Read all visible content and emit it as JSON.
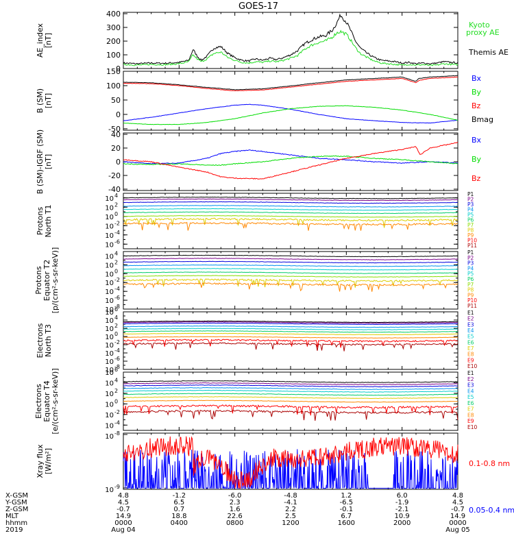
{
  "title": "GOES-17",
  "x_axis": {
    "row_labels": [
      "X-GSM",
      "Y-GSM",
      "Z-GSM",
      "MLT",
      "hhmm",
      "2019"
    ],
    "columns": [
      {
        "values": [
          "4.8",
          "4.5",
          "-0.7",
          "14.9",
          "0000",
          "Aug 04"
        ]
      },
      {
        "values": [
          "-1.2",
          "6.5",
          "0.7",
          "18.8",
          "0400",
          ""
        ]
      },
      {
        "values": [
          "-6.0",
          "2.3",
          "1.6",
          "22.6",
          "0800",
          ""
        ]
      },
      {
        "values": [
          "-4.8",
          "-4.1",
          "2.2",
          "2.5",
          "1200",
          ""
        ]
      },
      {
        "values": [
          "1.2",
          "-6.5",
          "-0.1",
          "6.7",
          "1600",
          ""
        ]
      },
      {
        "values": [
          "6.0",
          "-1.9",
          "-2.1",
          "10.9",
          "2000",
          ""
        ]
      },
      {
        "values": [
          "4.8",
          "4.5",
          "-0.7",
          "14.9",
          "0000",
          "Aug 05"
        ]
      }
    ]
  },
  "colors": {
    "black": "#000000",
    "red": "#ff0000",
    "green": "#00dd00",
    "blue": "#0000ff",
    "kyoto": "#22dd22",
    "xray_long": "#ff0000",
    "xray_short": "#0000ff"
  },
  "chart_data": [
    {
      "type": "line",
      "ylabel": [
        "AE_index",
        "[nT]"
      ],
      "yticks": [
        "0",
        "100",
        "200",
        "300",
        "400"
      ],
      "ylim": [
        0,
        410
      ],
      "x_hours": [
        0,
        24
      ],
      "series": [
        {
          "name": "Themis AE",
          "color": "#000000",
          "x": [
            0,
            1,
            2,
            3,
            4,
            4.7,
            5,
            5.3,
            5.6,
            6,
            6.5,
            7,
            7.5,
            8,
            8.5,
            9,
            9.5,
            10,
            10.5,
            11,
            11.5,
            12,
            12.5,
            13,
            13.5,
            14,
            14.5,
            15,
            15.3,
            15.6,
            16,
            16.3,
            16.6,
            17,
            17.5,
            18,
            18.5,
            19,
            19.5,
            20,
            20.5,
            21,
            21.5,
            22,
            22.5,
            23,
            23.5,
            24
          ],
          "y": [
            40,
            35,
            40,
            38,
            45,
            60,
            140,
            90,
            60,
            90,
            150,
            160,
            110,
            80,
            60,
            55,
            70,
            60,
            75,
            65,
            80,
            100,
            130,
            180,
            210,
            230,
            240,
            280,
            330,
            390,
            340,
            280,
            210,
            150,
            110,
            80,
            60,
            55,
            50,
            40,
            45,
            35,
            40,
            35,
            40,
            50,
            45,
            40
          ]
        },
        {
          "name": "Kyoto proxy AE",
          "color": "#22dd22",
          "x": [
            0,
            1,
            2,
            3,
            4,
            4.7,
            5,
            5.3,
            5.6,
            6,
            6.5,
            7,
            7.5,
            8,
            8.5,
            9,
            9.5,
            10,
            10.5,
            11,
            11.5,
            12,
            12.5,
            13,
            13.5,
            14,
            14.5,
            15,
            15.3,
            15.6,
            16,
            16.3,
            16.6,
            17,
            17.5,
            18,
            18.5,
            19,
            19.5,
            20,
            20.5,
            21,
            21.5,
            22,
            22.5,
            23,
            23.5,
            24
          ],
          "y": [
            30,
            25,
            30,
            28,
            35,
            50,
            100,
            70,
            50,
            70,
            110,
            120,
            80,
            60,
            45,
            40,
            50,
            45,
            55,
            50,
            60,
            75,
            95,
            140,
            170,
            190,
            200,
            230,
            260,
            270,
            250,
            210,
            160,
            110,
            80,
            55,
            40,
            35,
            30,
            25,
            30,
            25,
            28,
            22,
            25,
            35,
            30,
            28
          ]
        }
      ]
    },
    {
      "type": "line",
      "ylabel": [
        "B (SM)",
        "[nT]"
      ],
      "yticks": [
        "-50",
        "0",
        "50",
        "100",
        "150"
      ],
      "ylim": [
        -55,
        150
      ],
      "x_hours": [
        0,
        24
      ],
      "series": [
        {
          "name": "Bx",
          "color": "#0000ff",
          "x": [
            0,
            2,
            4,
            6,
            8,
            9,
            10,
            12,
            14,
            16,
            18,
            20,
            22,
            24
          ],
          "y": [
            -22,
            -10,
            5,
            20,
            32,
            35,
            32,
            18,
            0,
            -15,
            -22,
            -28,
            -30,
            -20
          ]
        },
        {
          "name": "By",
          "color": "#00dd00",
          "x": [
            0,
            2,
            4,
            6,
            8,
            10,
            12,
            14,
            16,
            18,
            20,
            22,
            24
          ],
          "y": [
            -30,
            -35,
            -35,
            -28,
            -15,
            5,
            20,
            28,
            30,
            25,
            15,
            0,
            -20
          ]
        },
        {
          "name": "Bz",
          "color": "#ff0000",
          "x": [
            0,
            2,
            4,
            6,
            8,
            10,
            12,
            14,
            16,
            18,
            20,
            21,
            21.2,
            22,
            24
          ],
          "y": [
            108,
            107,
            100,
            90,
            82,
            85,
            95,
            105,
            115,
            120,
            125,
            110,
            118,
            125,
            130
          ]
        },
        {
          "name": "Bmag",
          "color": "#000000",
          "x": [
            0,
            2,
            4,
            6,
            8,
            10,
            12,
            14,
            16,
            18,
            20,
            21,
            21.2,
            22,
            24
          ],
          "y": [
            112,
            110,
            103,
            94,
            86,
            89,
            99,
            110,
            120,
            125,
            130,
            115,
            125,
            130,
            135
          ]
        }
      ]
    },
    {
      "type": "line",
      "ylabel": [
        "B (SM)-IGRF (SM)",
        "[nT]"
      ],
      "yticks": [
        "-40",
        "-20",
        "0",
        "20",
        "40"
      ],
      "ylim": [
        -42,
        42
      ],
      "x_hours": [
        0,
        24
      ],
      "series": [
        {
          "name": "Bx",
          "color": "#0000ff",
          "x": [
            0,
            2,
            4,
            6,
            7,
            8,
            9,
            10,
            12,
            14,
            16,
            18,
            20,
            22,
            24
          ],
          "y": [
            0,
            -3,
            -2,
            5,
            12,
            15,
            17,
            15,
            10,
            5,
            3,
            0,
            -2,
            0,
            -2
          ]
        },
        {
          "name": "By",
          "color": "#00dd00",
          "x": [
            0,
            2,
            4,
            6,
            7,
            8,
            10,
            12,
            14,
            16,
            18,
            20,
            22,
            24
          ],
          "y": [
            -3,
            -4,
            -3,
            -5,
            -5,
            -3,
            0,
            5,
            8,
            8,
            5,
            3,
            0,
            -3
          ]
        },
        {
          "name": "Bz",
          "color": "#ff0000",
          "x": [
            0,
            2,
            4,
            6,
            7,
            8,
            10,
            12,
            14,
            16,
            18,
            20,
            21,
            21.3,
            22,
            24
          ],
          "y": [
            3,
            0,
            -8,
            -15,
            -22,
            -24,
            -25,
            -15,
            -5,
            5,
            12,
            18,
            22,
            10,
            20,
            28
          ]
        }
      ]
    },
    {
      "type": "line",
      "log": true,
      "ylabel": [
        "Protons",
        "North T1"
      ],
      "ytick_mant": [
        "10",
        "10",
        "10",
        "10",
        "10",
        "10"
      ],
      "ytick_exp": [
        "4",
        "2",
        "0",
        "-2",
        "-4",
        "-6"
      ],
      "ylim_exp": [
        -7,
        5
      ],
      "channels": [
        "P1",
        "P2",
        "P3",
        "P4",
        "P5",
        "P6",
        "P7",
        "P8",
        "P9",
        "P10",
        "P11"
      ],
      "levels": [
        4.0,
        3.6,
        3.0,
        2.2,
        1.5,
        0.8,
        0.0,
        -0.7,
        -1.6,
        null,
        null
      ],
      "colors": [
        "#000000",
        "#7a0089",
        "#0000dd",
        "#0090ee",
        "#00cccc",
        "#00cc66",
        "#88dd00",
        "#ddcc00",
        "#ff8800",
        "#ff0000",
        "#aa0000"
      ]
    },
    {
      "type": "line",
      "log": true,
      "ylabel": [
        "Protons",
        "Equator T2",
        "[p/(cm²-s-sr-keV)]"
      ],
      "ytick_mant": [
        "10",
        "10",
        "10",
        "10",
        "10",
        "10",
        "10"
      ],
      "ytick_exp": [
        "4",
        "2",
        "0",
        "-2",
        "-4",
        "-6",
        "-8"
      ],
      "ylim_exp": [
        -8,
        5
      ],
      "channels": [
        "P1",
        "P2",
        "P3",
        "P4",
        "P5",
        "P6",
        "P7",
        "P8",
        "P9",
        "P10",
        "P11"
      ],
      "levels": [
        4.0,
        3.3,
        2.6,
        1.8,
        1.0,
        0.2,
        -0.6,
        -1.5,
        -2.4,
        null,
        null
      ],
      "colors": [
        "#000000",
        "#7a0089",
        "#0000dd",
        "#0090ee",
        "#00cccc",
        "#00cc66",
        "#88dd00",
        "#ddcc00",
        "#ff8800",
        "#ff0000",
        "#aa0000"
      ]
    },
    {
      "type": "line",
      "log": true,
      "ylabel": [
        "Electrons",
        "North T3"
      ],
      "ytick_mant": [
        "10",
        "10",
        "10",
        "10",
        "10",
        "10",
        "10",
        "10"
      ],
      "ytick_exp": [
        "6",
        "4",
        "2",
        "0",
        "-2",
        "-4",
        "-6",
        "-8"
      ],
      "ylim_exp": [
        -8,
        6
      ],
      "channels": [
        "E1",
        "E2",
        "E3",
        "E4",
        "E5",
        "E6",
        "E7",
        "E8",
        "E9",
        "E10"
      ],
      "levels": [
        3.6,
        3.4,
        3.1,
        2.4,
        1.8,
        1.2,
        0.6,
        -0.2,
        -1.0,
        -1.8
      ],
      "colors": [
        "#000000",
        "#7a0089",
        "#0000dd",
        "#0090ee",
        "#00cccc",
        "#00cc66",
        "#ddcc00",
        "#ff8800",
        "#ff0000",
        "#aa0000"
      ]
    },
    {
      "type": "line",
      "log": true,
      "ylabel": [
        "Electrons",
        "Equator T4",
        "[e/(cm²-s-sr-keV)]"
      ],
      "ytick_mant": [
        "10",
        "10",
        "10",
        "10",
        "10",
        "10"
      ],
      "ytick_exp": [
        "6",
        "4",
        "2",
        "0",
        "-2",
        "-4"
      ],
      "ylim_exp": [
        -5,
        6
      ],
      "channels": [
        "E1",
        "E2",
        "E3",
        "E4",
        "E5",
        "E6",
        "E7",
        "E8",
        "E9",
        "E10"
      ],
      "levels": [
        4.2,
        3.8,
        3.4,
        2.9,
        2.4,
        1.8,
        1.2,
        0.5,
        -0.5,
        -1.5
      ],
      "colors": [
        "#000000",
        "#7a0089",
        "#0000dd",
        "#0090ee",
        "#00cccc",
        "#00cc66",
        "#ddcc00",
        "#ff8800",
        "#ff0000",
        "#aa0000"
      ]
    },
    {
      "type": "line",
      "log": true,
      "ylabel": [
        "Xray flux",
        "[W/m²]"
      ],
      "ytick_mant": [
        "10",
        "10"
      ],
      "ytick_exp": [
        "-8",
        "-9"
      ],
      "ylim_exp": [
        -9,
        -8
      ],
      "series": [
        {
          "name": "0.1-0.8 nm",
          "color": "#ff0000",
          "level": 0.55
        },
        {
          "name": "0.05-0.4 nm",
          "color": "#0000ff",
          "level": 0.2
        }
      ]
    }
  ]
}
